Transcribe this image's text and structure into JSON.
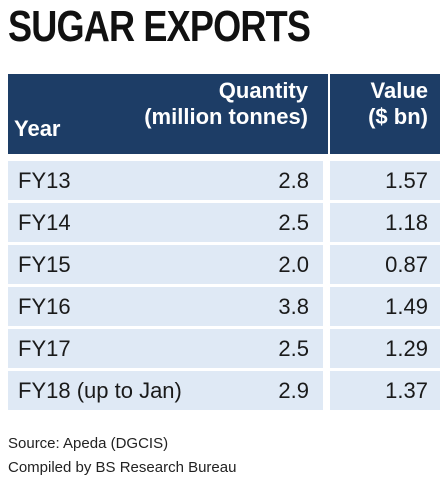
{
  "title": "SUGAR EXPORTS",
  "chart_data": {
    "type": "table",
    "columns": [
      {
        "key": "year",
        "label_line1": "",
        "label_line2": "Year"
      },
      {
        "key": "quantity",
        "label_line1": "Quantity",
        "label_line2": "(million tonnes)"
      },
      {
        "key": "value",
        "label_line1": "Value",
        "label_line2": "($ bn)"
      }
    ],
    "rows": [
      {
        "year": "FY13",
        "quantity": "2.8",
        "value": "1.57"
      },
      {
        "year": "FY14",
        "quantity": "2.5",
        "value": "1.18"
      },
      {
        "year": "FY15",
        "quantity": "2.0",
        "value": "0.87"
      },
      {
        "year": "FY16",
        "quantity": "3.8",
        "value": "1.49"
      },
      {
        "year": "FY17",
        "quantity": "2.5",
        "value": "1.29"
      },
      {
        "year": "FY18 (up to Jan)",
        "quantity": "2.9",
        "value": "1.37"
      }
    ]
  },
  "footer": {
    "source": "Source: Apeda (DGCIS)",
    "compiled": "Compiled by BS Research Bureau"
  },
  "colors": {
    "header_bg": "#1d3d66",
    "row_bg": "#dfe9f5"
  }
}
